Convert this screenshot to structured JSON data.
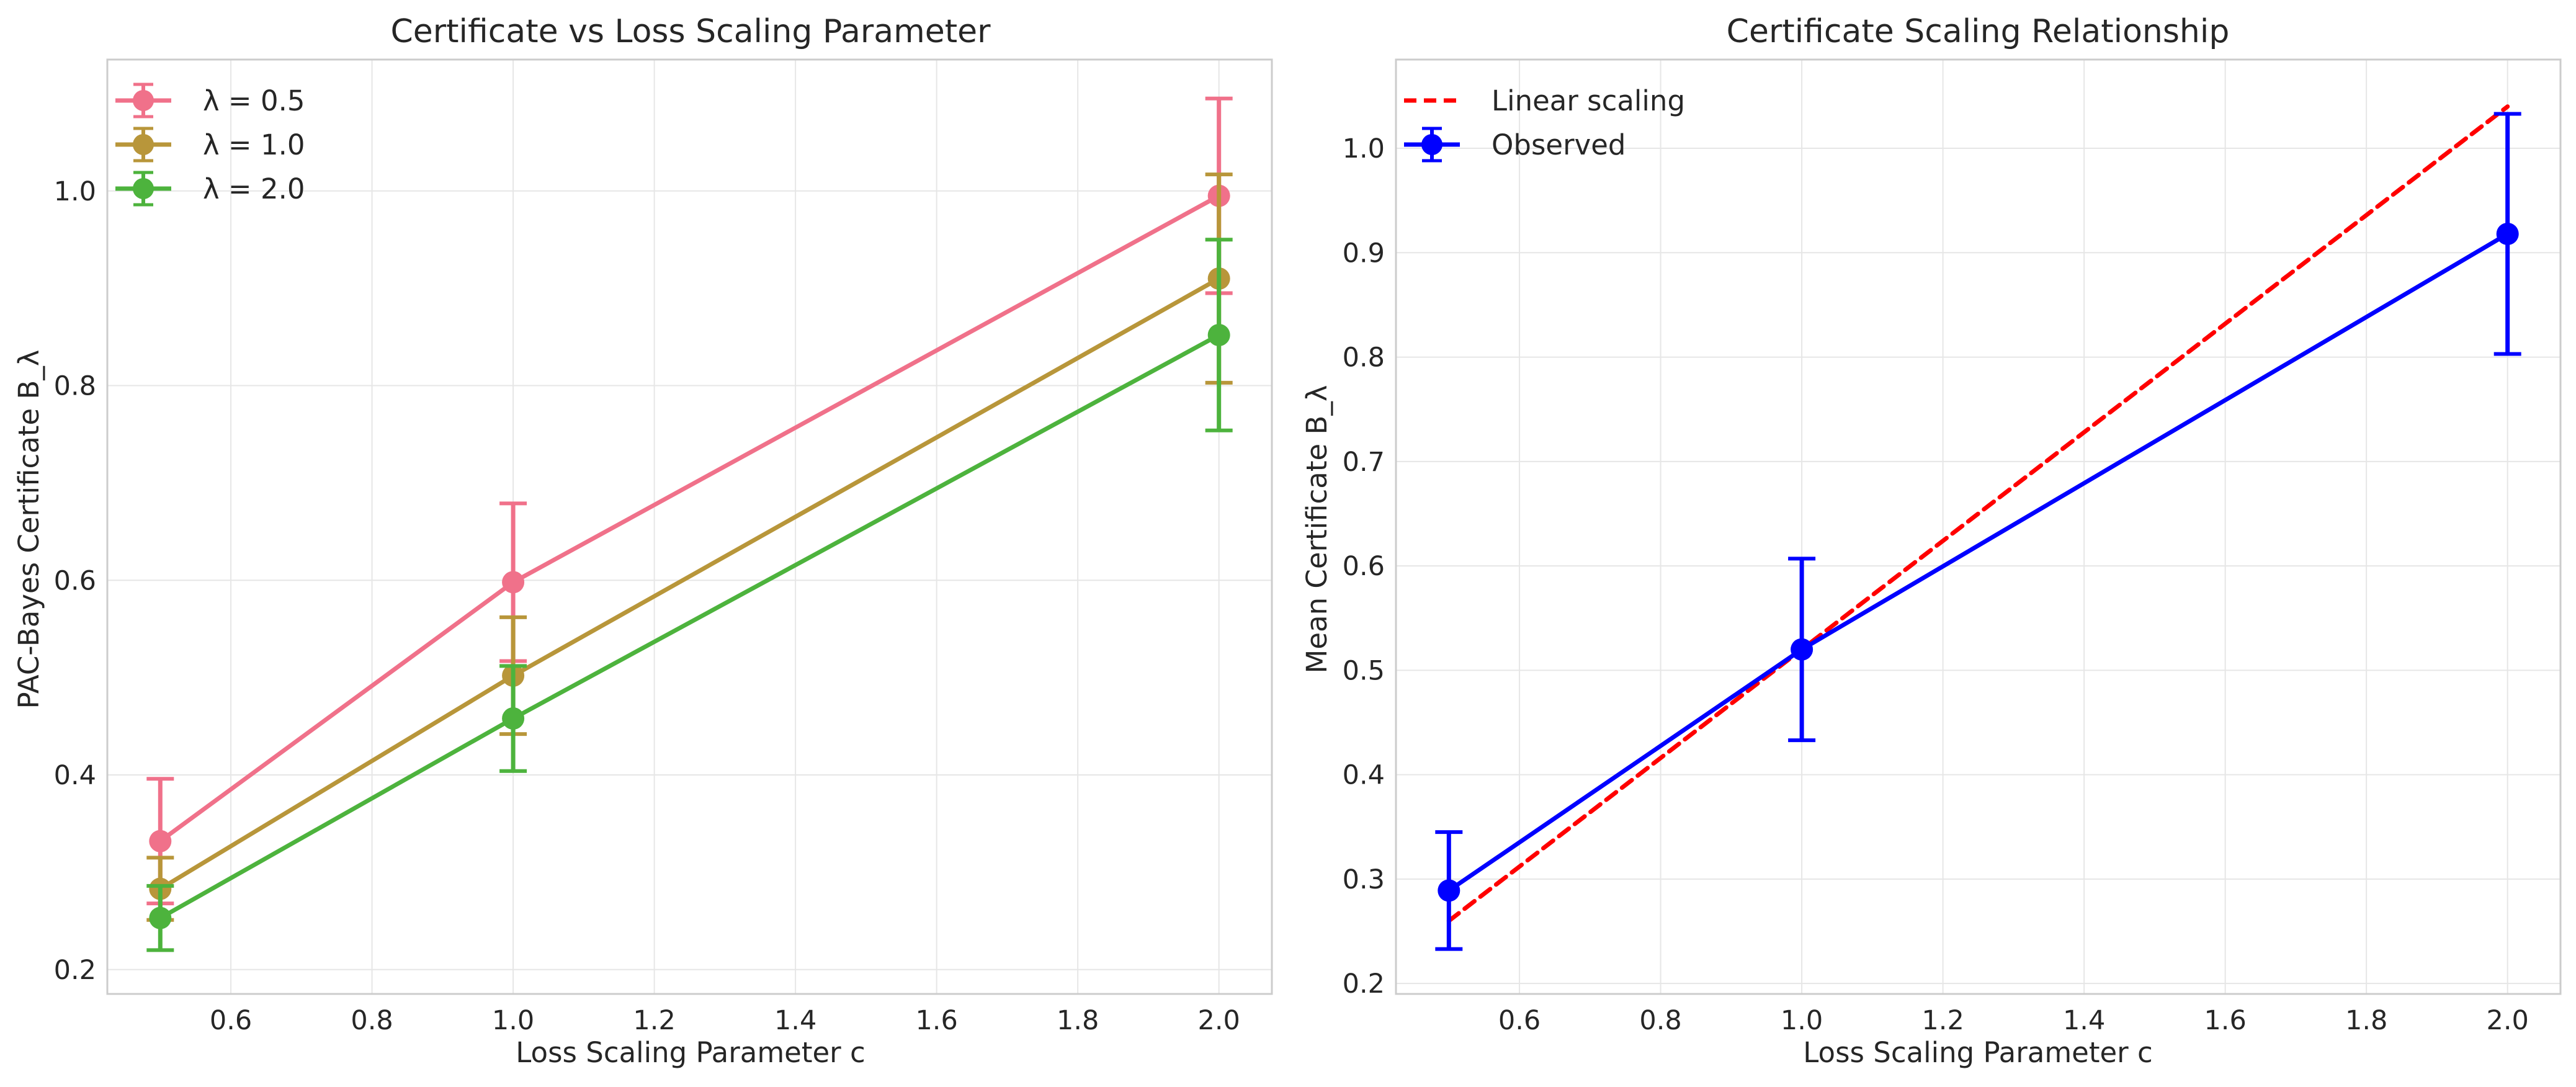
{
  "chart_data": [
    {
      "type": "line",
      "title": "Certificate vs Loss Scaling Parameter",
      "xlabel": "Loss Scaling Parameter c",
      "ylabel": "PAC-Bayes Certificate B_λ",
      "x": [
        0.5,
        1.0,
        2.0
      ],
      "xlim": [
        0.425,
        2.075
      ],
      "ylim": [
        0.175,
        1.135
      ],
      "xticks": [
        "0.6",
        "0.8",
        "1.0",
        "1.2",
        "1.4",
        "1.6",
        "1.8",
        "2.0"
      ],
      "yticks": [
        "0.2",
        "0.4",
        "0.6",
        "0.8",
        "1.0"
      ],
      "grid": true,
      "legend_position": "top-left",
      "series": [
        {
          "name": "λ = 0.5",
          "values": [
            0.332,
            0.598,
            0.995
          ],
          "errors": [
            0.064,
            0.081,
            0.1
          ],
          "color": "#f0718a"
        },
        {
          "name": "λ = 1.0",
          "values": [
            0.283,
            0.502,
            0.91
          ],
          "errors": [
            0.032,
            0.06,
            0.107
          ],
          "color": "#b8963a"
        },
        {
          "name": "λ = 2.0",
          "values": [
            0.253,
            0.458,
            0.852
          ],
          "errors": [
            0.033,
            0.054,
            0.098
          ],
          "color": "#4db33d"
        }
      ]
    },
    {
      "type": "line",
      "title": "Certificate Scaling Relationship",
      "xlabel": "Loss Scaling Parameter c",
      "ylabel": "Mean Certificate B_λ",
      "x": [
        0.5,
        1.0,
        2.0
      ],
      "xlim": [
        0.425,
        2.075
      ],
      "ylim": [
        0.19,
        1.085
      ],
      "xticks": [
        "0.6",
        "0.8",
        "1.0",
        "1.2",
        "1.4",
        "1.6",
        "1.8",
        "2.0"
      ],
      "yticks": [
        "0.2",
        "0.3",
        "0.4",
        "0.5",
        "0.6",
        "0.7",
        "0.8",
        "0.9",
        "1.0"
      ],
      "grid": true,
      "legend_position": "top-left",
      "series": [
        {
          "name": "Linear scaling",
          "style": "dashed",
          "markers": false,
          "values": [
            0.26,
            0.52,
            1.04
          ],
          "color": "#ff0000"
        },
        {
          "name": "Observed",
          "style": "solid",
          "markers": true,
          "values": [
            0.289,
            0.52,
            0.918
          ],
          "errors": [
            0.056,
            0.087,
            0.115
          ],
          "color": "#0000ff"
        }
      ]
    }
  ]
}
